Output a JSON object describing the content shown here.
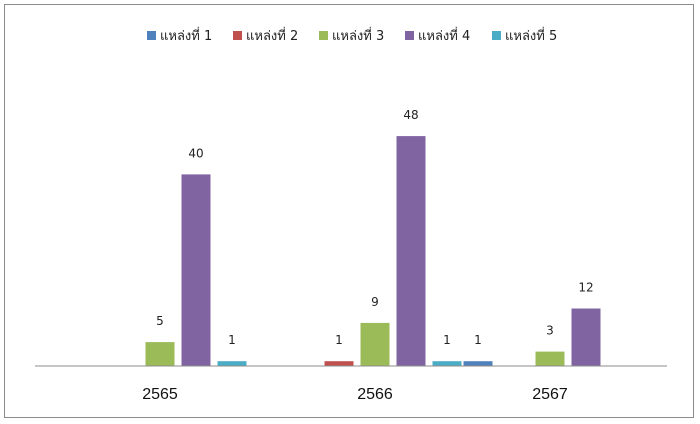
{
  "chart_data": {
    "type": "bar",
    "title": "",
    "xlabel": "",
    "ylabel": "",
    "categories": [
      "2565",
      "2566",
      "2567"
    ],
    "series": [
      {
        "name": "แหล่งที่ 1",
        "color": "#4f81bd",
        "values": [
          null,
          null,
          1
        ]
      },
      {
        "name": "แหล่งที่ 2",
        "color": "#c0504d",
        "values": [
          null,
          1,
          null
        ]
      },
      {
        "name": "แหล่งที่ 3",
        "color": "#9bbb59",
        "values": [
          5,
          9,
          3
        ]
      },
      {
        "name": "แหล่งที่ 4",
        "color": "#8064a2",
        "values": [
          40,
          48,
          12
        ]
      },
      {
        "name": "แหล่งที่ 5",
        "color": "#4bacc6",
        "values": [
          1,
          1,
          null
        ]
      }
    ],
    "ylim": [
      0,
      60
    ],
    "grid": false,
    "legend_position": "top",
    "data_labels": true
  }
}
